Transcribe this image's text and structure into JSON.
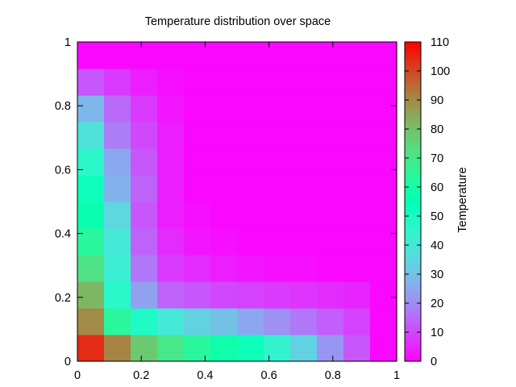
{
  "chart_data": {
    "type": "heatmap",
    "title": "Temperature distribution over space",
    "xlabel": "",
    "ylabel": "",
    "xlim": [
      0,
      1
    ],
    "ylim": [
      0,
      1
    ],
    "x_ticks": [
      "0",
      "0.2",
      "0.4",
      "0.6",
      "0.8",
      "1"
    ],
    "y_ticks": [
      "0",
      "0.2",
      "0.4",
      "0.6",
      "0.8",
      "1"
    ],
    "grid": false,
    "colormap": "rainbow",
    "colorbar": {
      "label": "Temperature",
      "range": [
        0,
        110
      ],
      "ticks": [
        "0",
        "10",
        "20",
        "30",
        "40",
        "50",
        "60",
        "70",
        "80",
        "90",
        "100",
        "110"
      ]
    },
    "grid_size": [
      12,
      12
    ],
    "values": [
      [
        104,
        91,
        78,
        70,
        64,
        58,
        52,
        44,
        34,
        22,
        12,
        1
      ],
      [
        90,
        64,
        48,
        40,
        34,
        30,
        25,
        21,
        17,
        13,
        9,
        1
      ],
      [
        82,
        46,
        24,
        14,
        12,
        10,
        9,
        8,
        7,
        6,
        5,
        1
      ],
      [
        72,
        42,
        17,
        8,
        6,
        4,
        3,
        2,
        2,
        1,
        1,
        1
      ],
      [
        64,
        40,
        14,
        6,
        3,
        2,
        1,
        1,
        1,
        1,
        1,
        1
      ],
      [
        57,
        35,
        12,
        4,
        2,
        1,
        1,
        1,
        1,
        1,
        1,
        1
      ],
      [
        52,
        27,
        14,
        4,
        1,
        1,
        1,
        1,
        1,
        1,
        1,
        1
      ],
      [
        46,
        25,
        12,
        4,
        1,
        1,
        1,
        1,
        1,
        1,
        1,
        1
      ],
      [
        38,
        18,
        10,
        4,
        1,
        1,
        1,
        1,
        1,
        1,
        1,
        1
      ],
      [
        28,
        15,
        8,
        3,
        1,
        1,
        1,
        1,
        1,
        1,
        1,
        1
      ],
      [
        12,
        8,
        4,
        2,
        1,
        1,
        1,
        1,
        1,
        1,
        1,
        1
      ],
      [
        1,
        1,
        1,
        1,
        1,
        1,
        1,
        1,
        1,
        1,
        1,
        1
      ]
    ]
  }
}
